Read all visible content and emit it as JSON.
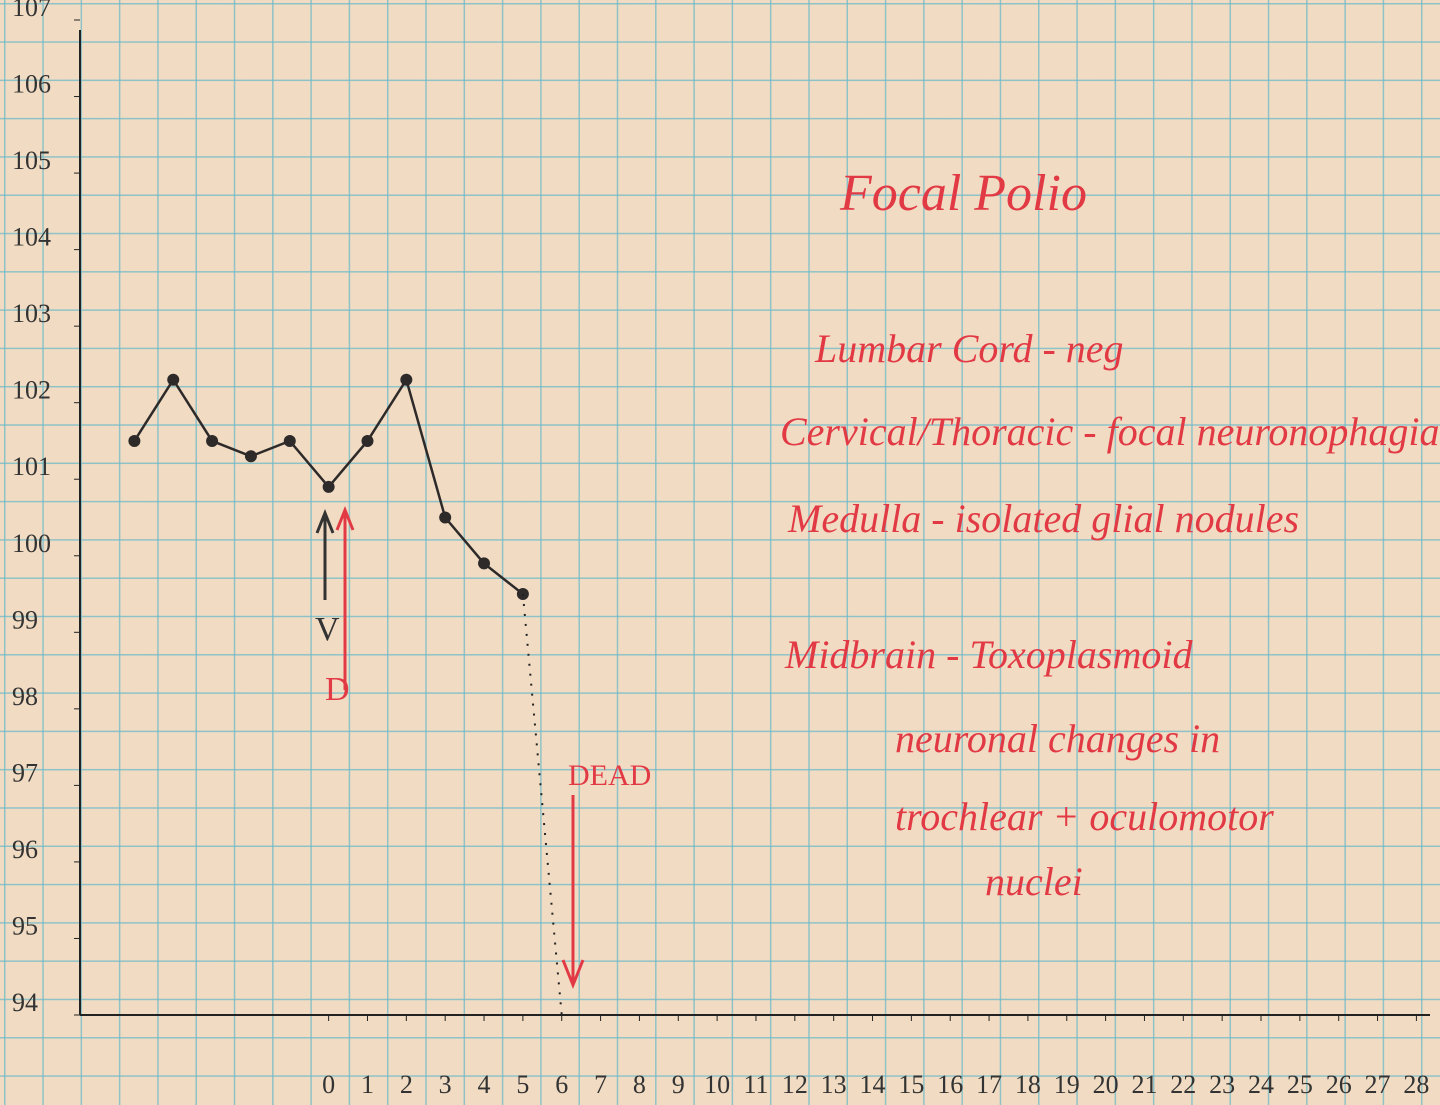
{
  "chart_data": {
    "type": "line",
    "x": [
      -5,
      -4,
      -3,
      -2,
      -1,
      0,
      1,
      2,
      3,
      4,
      5
    ],
    "series": [
      {
        "color": "#2e2a2a",
        "values": [
          101.5,
          102.3,
          101.5,
          101.3,
          101.5,
          100.9,
          101.5,
          102.3,
          100.5,
          99.9,
          99.5
        ]
      }
    ],
    "dotted_segment": {
      "x": [
        5,
        6
      ],
      "values": [
        99.5,
        94
      ],
      "color": "#222"
    },
    "xlim": [
      -6.4,
      28.35
    ],
    "xticks": [
      0,
      1,
      2,
      3,
      4,
      5,
      6,
      7,
      8,
      9,
      10,
      11,
      12,
      13,
      14,
      15,
      16,
      17,
      18,
      19,
      20,
      21,
      22,
      23,
      24,
      25,
      26,
      27,
      28
    ],
    "ylim": [
      94,
      107
    ],
    "yticks": [
      94,
      95,
      96,
      97,
      98,
      99,
      100,
      101,
      102,
      103,
      104,
      105,
      106,
      107
    ],
    "annotations": {
      "title": "Focal Polio",
      "notes": [
        "Lumbar Cord - neg",
        "Cervical/Thoracic - focal neuronophagia",
        "Medulla - isolated glial nodules",
        "Midbrain - Toxoplasmoid",
        "neuronal changes in",
        "trochlear + oculomotor",
        "nuclei"
      ],
      "v_arrow": "V",
      "d_arrow": "D",
      "dead": "DEAD"
    },
    "annotation_color": "#e23a45"
  }
}
